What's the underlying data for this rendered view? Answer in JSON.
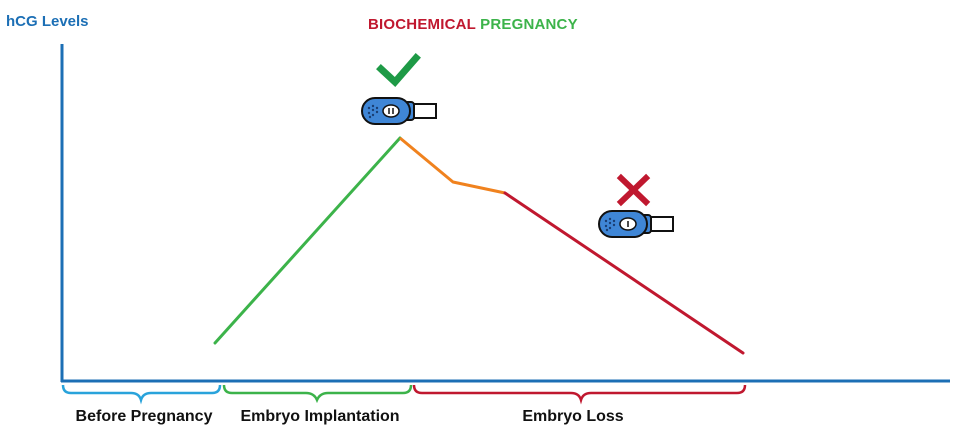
{
  "title": {
    "part1": "BIOCHEMICAL",
    "part2": "PREGNANCY"
  },
  "y_axis_label": "hCG Levels",
  "phases": [
    {
      "label": "Before Pregnancy",
      "color": "#29a3db"
    },
    {
      "label": "Embryo Implantation",
      "color": "#3cb34a"
    },
    {
      "label": "Embryo Loss",
      "color": "#c0182f"
    }
  ],
  "colors": {
    "axis": "#1c6fb5",
    "title_part1": "#c0182f",
    "title_part2": "#3cb34a",
    "rise": "#3cb34a",
    "early_decline": "#f0821e",
    "loss": "#c0182f",
    "test_body": "#3f86d6",
    "check": "#1e9a46",
    "cross": "#c0182f"
  },
  "markers": [
    {
      "name": "positive-test",
      "result_icon": "check-icon"
    },
    {
      "name": "negative-test",
      "result_icon": "cross-icon"
    }
  ]
}
